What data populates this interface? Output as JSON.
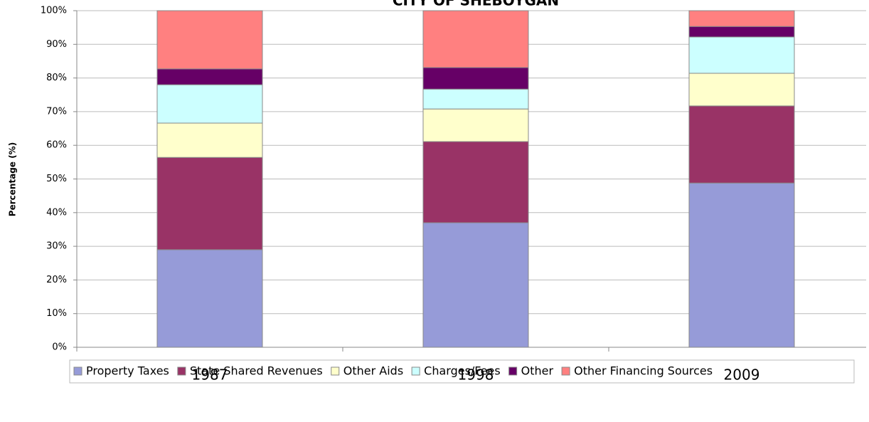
{
  "chart_data": {
    "type": "stacked_bar",
    "title": "CITY OF SHEBOYGAN",
    "y_label": "Percentage (%)",
    "categories": [
      "1987",
      "1998",
      "2009"
    ],
    "series": [
      {
        "name": "Property Taxes",
        "color": "#969bd8",
        "values": [
          29.0,
          37.0,
          48.8
        ]
      },
      {
        "name": "State Shared Revenues",
        "color": "#993366",
        "values": [
          27.4,
          24.1,
          22.9
        ]
      },
      {
        "name": "Other Aids",
        "color": "#ffffcc",
        "values": [
          10.2,
          9.7,
          9.7
        ]
      },
      {
        "name": "Charges/Fees",
        "color": "#ccffff",
        "values": [
          11.4,
          5.9,
          10.8
        ]
      },
      {
        "name": "Other",
        "color": "#660066",
        "values": [
          4.7,
          6.4,
          3.1
        ]
      },
      {
        "name": "Other Financing Sources",
        "color": "#ff8080",
        "values": [
          17.3,
          16.9,
          4.7
        ]
      }
    ],
    "ylim": [
      0,
      100
    ],
    "yticks": [
      {
        "value": 0,
        "label": "0%"
      },
      {
        "value": 10,
        "label": "10%"
      },
      {
        "value": 20,
        "label": "20%"
      },
      {
        "value": 30,
        "label": "30%"
      },
      {
        "value": 40,
        "label": "40%"
      },
      {
        "value": 50,
        "label": "50%"
      },
      {
        "value": 60,
        "label": "60%"
      },
      {
        "value": 70,
        "label": "70%"
      },
      {
        "value": 80,
        "label": "80%"
      },
      {
        "value": 90,
        "label": "90%"
      },
      {
        "value": 100,
        "label": "100%"
      }
    ],
    "grid": true,
    "legend": "bottom"
  }
}
